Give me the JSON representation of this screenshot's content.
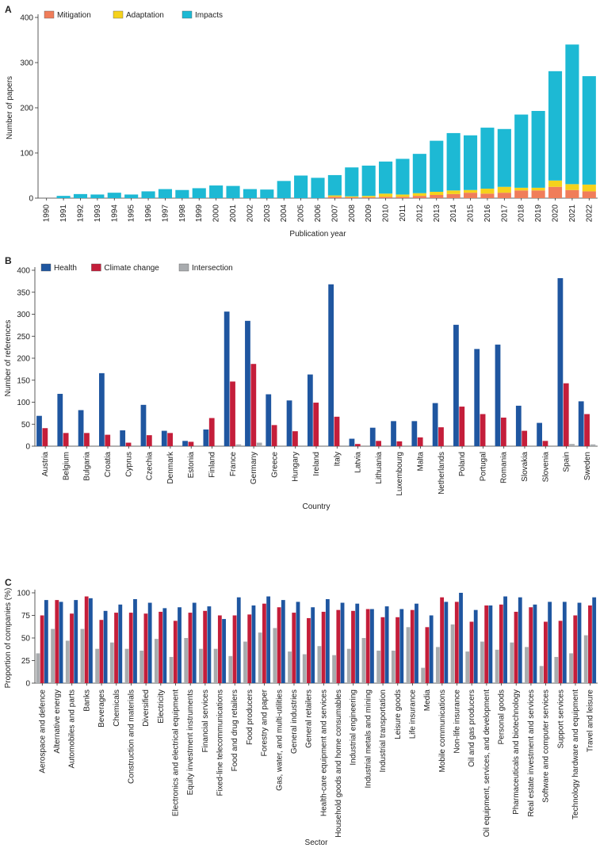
{
  "chart_data": [
    {
      "panel": "A",
      "type": "bar",
      "stacked": true,
      "categories": [
        "1990",
        "1991",
        "1992",
        "1993",
        "1994",
        "1995",
        "1996",
        "1997",
        "1998",
        "1999",
        "2000",
        "2001",
        "2002",
        "2003",
        "2004",
        "2005",
        "2006",
        "2007",
        "2008",
        "2009",
        "2010",
        "2011",
        "2012",
        "2013",
        "2014",
        "2015",
        "2016",
        "2017",
        "2018",
        "2019",
        "2020",
        "2021",
        "2022"
      ],
      "series": [
        {
          "name": "Mitigation",
          "color": "#f07d5a",
          "values": [
            0,
            0,
            0,
            0,
            0,
            0,
            0,
            0,
            0,
            0,
            0,
            0,
            0,
            0,
            0,
            0,
            0,
            3,
            2,
            2,
            3,
            3,
            5,
            7,
            9,
            12,
            10,
            12,
            17,
            17,
            25,
            18,
            15
          ]
        },
        {
          "name": "Adaptation",
          "color": "#f5d21c",
          "values": [
            0,
            0,
            0,
            0,
            0,
            0,
            0,
            0,
            0,
            0,
            0,
            0,
            0,
            0,
            0,
            0,
            0,
            3,
            2,
            3,
            7,
            5,
            6,
            7,
            8,
            6,
            11,
            13,
            6,
            6,
            14,
            13,
            15
          ]
        },
        {
          "name": "Impacts",
          "color": "#1db9d4",
          "values": [
            0,
            5,
            9,
            8,
            12,
            8,
            15,
            20,
            18,
            22,
            28,
            27,
            20,
            19,
            38,
            50,
            45,
            45,
            64,
            67,
            71,
            79,
            87,
            113,
            127,
            121,
            135,
            128,
            162,
            170,
            242,
            309,
            240
          ]
        }
      ],
      "xlabel": "Publication year",
      "ylabel": "Number of papers",
      "ylim": [
        0,
        400
      ],
      "yticks": [
        "0",
        "100",
        "200",
        "300",
        "400"
      ],
      "legend": "top-left"
    },
    {
      "panel": "B",
      "type": "bar",
      "categories": [
        "Austria",
        "Belgium",
        "Bulgaria",
        "Croatia",
        "Cyprus",
        "Czechia",
        "Denmark",
        "Estonia",
        "Finland",
        "France",
        "Germany",
        "Greece",
        "Hungary",
        "Ireland",
        "Italy",
        "Latvia",
        "Lithuania",
        "Luxembourg",
        "Malta",
        "Netherlands",
        "Poland",
        "Portugal",
        "Romania",
        "Slovakia",
        "Slovenia",
        "Spain",
        "Sweden"
      ],
      "series": [
        {
          "name": "Health",
          "color": "#1f56a0",
          "values": [
            69,
            119,
            82,
            166,
            36,
            94,
            35,
            12,
            38,
            306,
            285,
            118,
            104,
            163,
            368,
            17,
            42,
            57,
            57,
            98,
            276,
            221,
            231,
            92,
            53,
            382,
            102
          ]
        },
        {
          "name": "Climate change",
          "color": "#c41e3a",
          "values": [
            41,
            30,
            30,
            26,
            8,
            25,
            30,
            10,
            64,
            147,
            187,
            48,
            34,
            99,
            67,
            5,
            12,
            11,
            20,
            43,
            90,
            73,
            65,
            35,
            12,
            143,
            73
          ]
        },
        {
          "name": "Intersection",
          "color": "#a8abae",
          "values": [
            0,
            0,
            0,
            0,
            0,
            0,
            0,
            0,
            0,
            4,
            8,
            0,
            0,
            0,
            0,
            0,
            0,
            0,
            0,
            0,
            0,
            0,
            0,
            0,
            0,
            5,
            4
          ]
        }
      ],
      "xlabel": "Country",
      "ylabel": "Number of references",
      "ylim": [
        0,
        400
      ],
      "yticks": [
        "0",
        "50",
        "100",
        "150",
        "200",
        "250",
        "300",
        "350",
        "400"
      ],
      "legend": "top-left"
    },
    {
      "panel": "C",
      "type": "bar",
      "categories": [
        "Aerospace and defence",
        "Alternative energy",
        "Automobiles and parts",
        "Banks",
        "Beverages",
        "Chemicals",
        "Construction and materials",
        "Diversified",
        "Electricity",
        "Electronics and electrical equipment",
        "Equity investment instruments",
        "Financial services",
        "Fixed-line telecommunications",
        "Food and drug retailers",
        "Food producers",
        "Forestry and paper",
        "Gas, water, and multi-utilities",
        "General industries",
        "General retailers",
        "Health-care equipment and services",
        "Household goods and home consumables",
        "Industrial engineering",
        "Industrial metals and mining",
        "Industrial transportation",
        "Leisure goods",
        "Life insurance",
        "Media",
        "Mobile communications",
        "Non-life insurance",
        "Oil and gas producers",
        "Oil equipment, services, and development",
        "Personal goods",
        "Pharmaceuticals and biotechnology",
        "Real estate investment and services",
        "Software and computer services",
        "Support services",
        "Technology hardware and equipment",
        "Travel and leisure"
      ],
      "series": [
        {
          "name": "Intersection",
          "color": "#a8abae",
          "values": [
            33,
            60,
            47,
            60,
            38,
            45,
            38,
            36,
            49,
            29,
            50,
            38,
            38,
            30,
            46,
            56,
            61,
            35,
            32,
            41,
            31,
            38,
            50,
            36,
            36,
            62,
            17,
            40,
            65,
            35,
            46,
            37,
            45,
            40,
            19,
            29,
            33,
            53
          ]
        },
        {
          "name": "Climate change",
          "color": "#c41e3a",
          "values": [
            75,
            92,
            77,
            96,
            70,
            78,
            78,
            77,
            79,
            69,
            78,
            80,
            75,
            75,
            76,
            88,
            84,
            78,
            72,
            79,
            81,
            80,
            82,
            73,
            73,
            81,
            62,
            95,
            90,
            68,
            86,
            87,
            79,
            84,
            68,
            69,
            75,
            86
          ]
        },
        {
          "name": "Health",
          "color": "#1f56a0",
          "values": [
            92,
            90,
            92,
            94,
            80,
            87,
            93,
            89,
            83,
            84,
            89,
            85,
            71,
            95,
            86,
            96,
            92,
            90,
            84,
            93,
            89,
            88,
            82,
            85,
            82,
            88,
            75,
            90,
            100,
            81,
            86,
            96,
            95,
            87,
            90,
            90,
            89,
            95
          ]
        }
      ],
      "xlabel": "Sector",
      "ylabel": "Proportion of companies (%)",
      "ylim": [
        0,
        100
      ],
      "yticks": [
        "0",
        "25",
        "50",
        "75",
        "100"
      ],
      "legend": "none"
    }
  ]
}
